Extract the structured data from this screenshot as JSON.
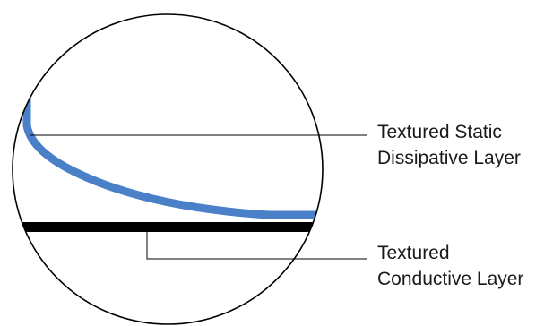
{
  "callouts": {
    "static_dissipative": {
      "line1": "Textured Static",
      "line2": "Dissipative Layer"
    },
    "conductive": {
      "line1": "Textured",
      "line2": "Conductive Layer"
    }
  },
  "colors": {
    "static_dissipative_layer": "#4a80c8",
    "conductive_layer": "#000000",
    "outline": "#000000",
    "text": "#1a1a1a"
  }
}
